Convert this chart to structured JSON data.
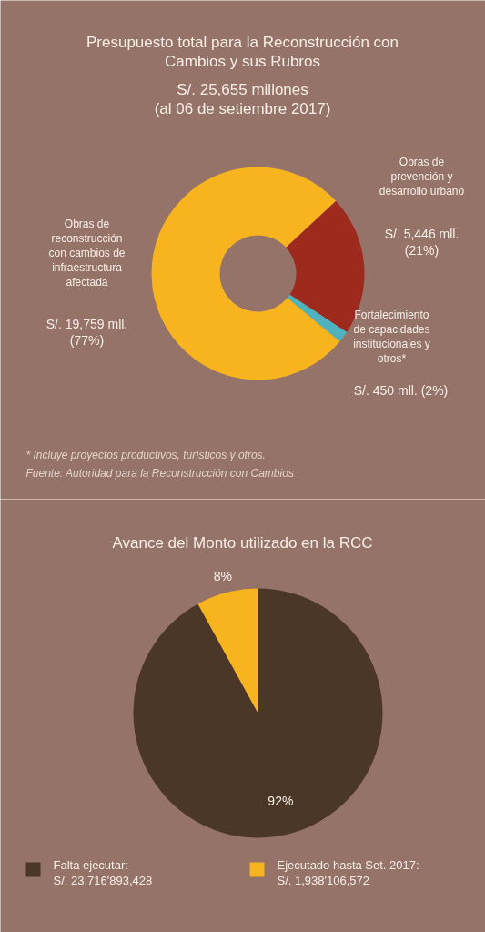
{
  "chart_data": [
    {
      "type": "donut",
      "title": "Presupuesto total para la Reconstrucción con\nCambios y sus Rubros",
      "subtitle": "S/. 25,655 millones\n(al 06 de setiembre 2017)",
      "categories": [
        "Obras de\nprevención y\ndesarrollo urbano",
        "Fortalecimiento\nde capacidades\ninstitucionales y\notros*",
        "Obras de\nreconstrucción\ncon cambios de\ninfraestructura\nafectada"
      ],
      "values": [
        5446,
        450,
        19759
      ],
      "colors": [
        "#9e2a1e",
        "#4fb3bf",
        "#f7b41f"
      ],
      "value_labels": [
        "S/. 5,446 mll.\n(21%)",
        "S/. 450 mll. (2%)",
        "S/. 19,759 mll.\n(77%)"
      ],
      "annotations": [
        "*  Incluye proyectos productivos, turísticos y otros.",
        "   Fuente: Autoridad para la Reconstrucción con Cambios"
      ]
    },
    {
      "type": "pie",
      "title": "Avance del Monto utilizado en la RCC",
      "categories": [
        "Falta ejecutar:\nS/. 23,716'893,428",
        "Ejecutado hasta Set. 2017:\nS/. 1,938'106,572"
      ],
      "values": [
        92,
        8
      ],
      "colors": [
        "#4a3728",
        "#f7b41f"
      ],
      "value_labels": [
        "92%",
        "8%"
      ],
      "legend": "bottom"
    }
  ]
}
